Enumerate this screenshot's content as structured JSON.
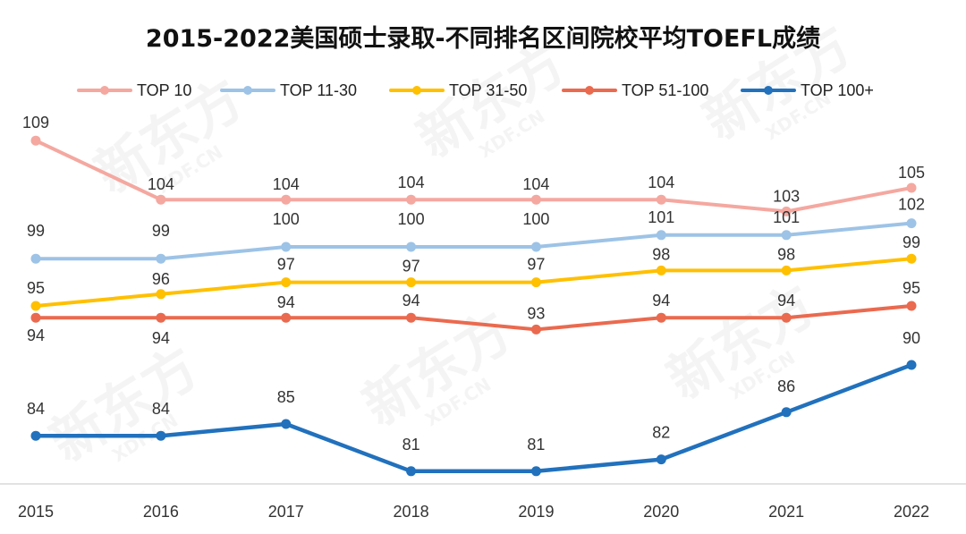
{
  "chart_data": {
    "type": "line",
    "title": "2015-2022美国硕士录取-不同排名区间院校平均TOEFL成绩",
    "xlabel": "",
    "ylabel": "",
    "legend_position": "top",
    "grid": false,
    "x": [
      "2015",
      "2016",
      "2017",
      "2018",
      "2019",
      "2020",
      "2021",
      "2022"
    ],
    "series": [
      {
        "name": "TOP 10",
        "color": "#F4A8A0",
        "values": [
          109,
          104,
          104,
          104,
          104,
          104,
          103,
          105
        ]
      },
      {
        "name": "TOP 11-30",
        "color": "#9DC3E6",
        "values": [
          99,
          99,
          100,
          100,
          100,
          101,
          101,
          102
        ]
      },
      {
        "name": "TOP 31-50",
        "color": "#FFC000",
        "values": [
          95,
          96,
          97,
          97,
          97,
          98,
          98,
          99
        ]
      },
      {
        "name": "TOP 51-100",
        "color": "#EA6A4F",
        "values": [
          94,
          94,
          94,
          94,
          93,
          94,
          94,
          95
        ]
      },
      {
        "name": "TOP 100+",
        "color": "#2171BD",
        "values": [
          84,
          84,
          85,
          81,
          81,
          82,
          86,
          90
        ]
      }
    ]
  },
  "watermark": {
    "brand": "新东方",
    "site": "XDF.CN"
  }
}
